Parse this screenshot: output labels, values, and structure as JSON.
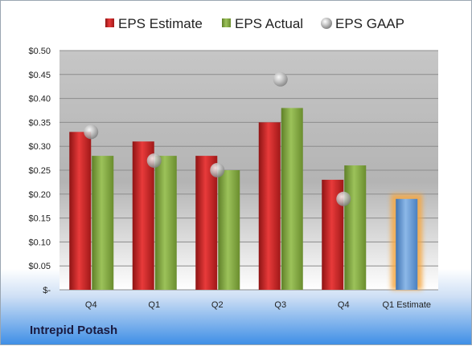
{
  "company": "Intrepid Potash",
  "colors": {
    "estimate": "#d42a2a",
    "actual": "#8db24a",
    "gaap": "#b8b8b8",
    "future_estimate": "#6a9fd6",
    "future_glow": "#f5a742"
  },
  "chart_data": {
    "type": "bar",
    "categories": [
      "Q4",
      "Q1",
      "Q2",
      "Q3",
      "Q4",
      "Q1 Estimate"
    ],
    "series": [
      {
        "name": "EPS Estimate",
        "values": [
          0.33,
          0.31,
          0.28,
          0.35,
          0.23,
          null
        ]
      },
      {
        "name": "EPS Actual",
        "values": [
          0.28,
          0.28,
          0.25,
          0.38,
          0.26,
          0.19
        ]
      },
      {
        "name": "EPS GAAP",
        "values": [
          0.33,
          0.27,
          0.25,
          0.44,
          0.19,
          null
        ]
      }
    ],
    "ylim": [
      0,
      0.5
    ],
    "yticks": [
      0,
      0.05,
      0.1,
      0.15,
      0.2,
      0.25,
      0.3,
      0.35,
      0.4,
      0.45,
      0.5
    ],
    "ytick_labels": [
      "$-",
      "$0.05",
      "$0.10",
      "$0.15",
      "$0.20",
      "$0.25",
      "$0.30",
      "$0.35",
      "$0.40",
      "$0.45",
      "$0.50"
    ],
    "legend_position": "top",
    "grid": true
  }
}
